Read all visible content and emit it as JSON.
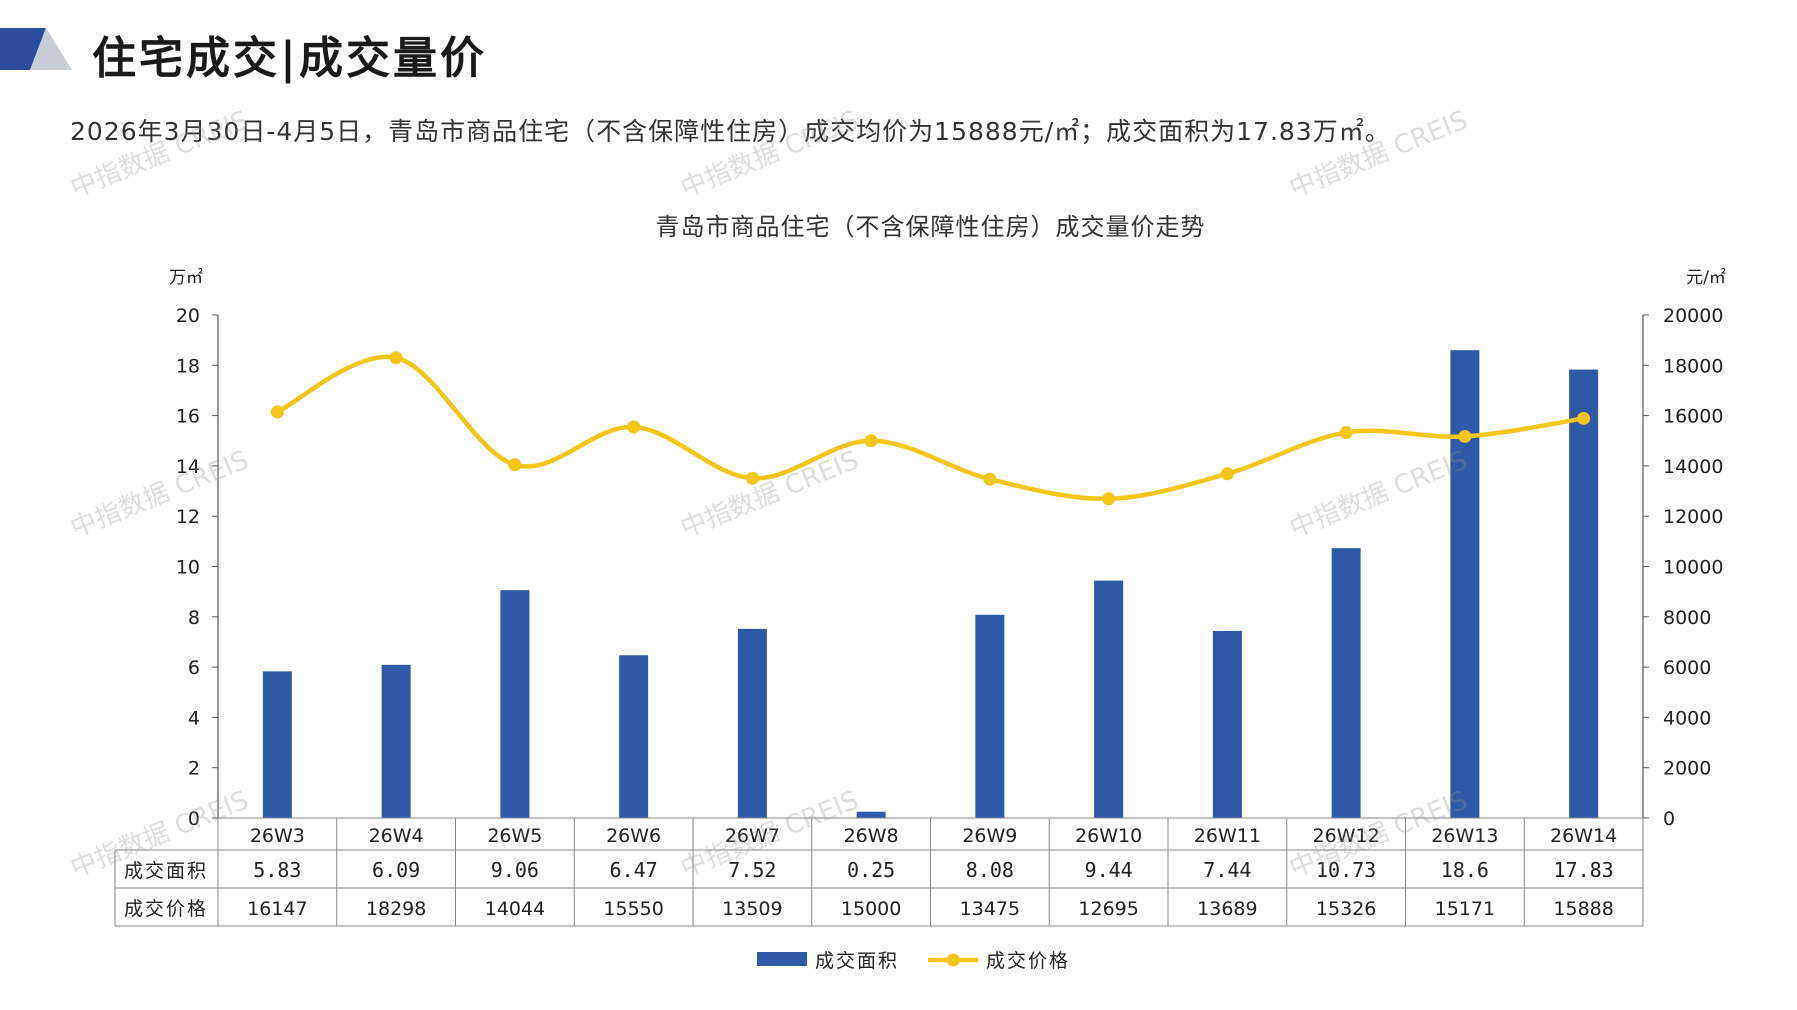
{
  "header": {
    "title": "住宅成交|成交量价",
    "summary": "2026年3月30日-4月5日，青岛市商品住宅（不含保障性住房）成交均价为15888元/㎡；成交面积为17.83万㎡。"
  },
  "watermark_text": "中指数据 CREIS",
  "colors": {
    "bar": "#2E59A7",
    "line": "#F5C518",
    "axis": "#555555",
    "logo_dark": "#2B4C9B",
    "logo_light": "#C9CDD6"
  },
  "chart_data": {
    "type": "bar",
    "title": "青岛市商品住宅（不含保障性住房）成交量价走势",
    "categories": [
      "26W3",
      "26W4",
      "26W5",
      "26W6",
      "26W7",
      "26W8",
      "26W9",
      "26W10",
      "26W11",
      "26W12",
      "26W13",
      "26W14"
    ],
    "series": [
      {
        "name": "成交面积",
        "type": "bar",
        "axis": "left",
        "display": [
          "5.83",
          "6.09",
          "9.06",
          "6.47",
          "7.52",
          "0.25",
          "8.08",
          "9.44",
          "7.44",
          "10.73",
          "18.6",
          "17.83"
        ],
        "values": [
          5.83,
          6.09,
          9.06,
          6.47,
          7.52,
          0.25,
          8.08,
          9.44,
          7.44,
          10.73,
          18.6,
          17.83
        ]
      },
      {
        "name": "成交价格",
        "type": "line",
        "axis": "right",
        "smooth": true,
        "values": [
          16147,
          18298,
          14044,
          15550,
          13509,
          15000,
          13475,
          12695,
          13689,
          15326,
          15171,
          15888
        ]
      }
    ],
    "y_left": {
      "unit": "万㎡",
      "ylim": [
        0,
        20
      ],
      "ticks": [
        "0",
        "2",
        "4",
        "6",
        "8",
        "10",
        "12",
        "14",
        "16",
        "18",
        "20"
      ]
    },
    "y_right": {
      "unit": "元/㎡",
      "ylim": [
        0,
        20000
      ],
      "ticks": [
        "0",
        "2000",
        "4000",
        "6000",
        "8000",
        "10000",
        "12000",
        "14000",
        "16000",
        "18000",
        "20000"
      ]
    },
    "data_table": true,
    "legend_position": "bottom"
  }
}
